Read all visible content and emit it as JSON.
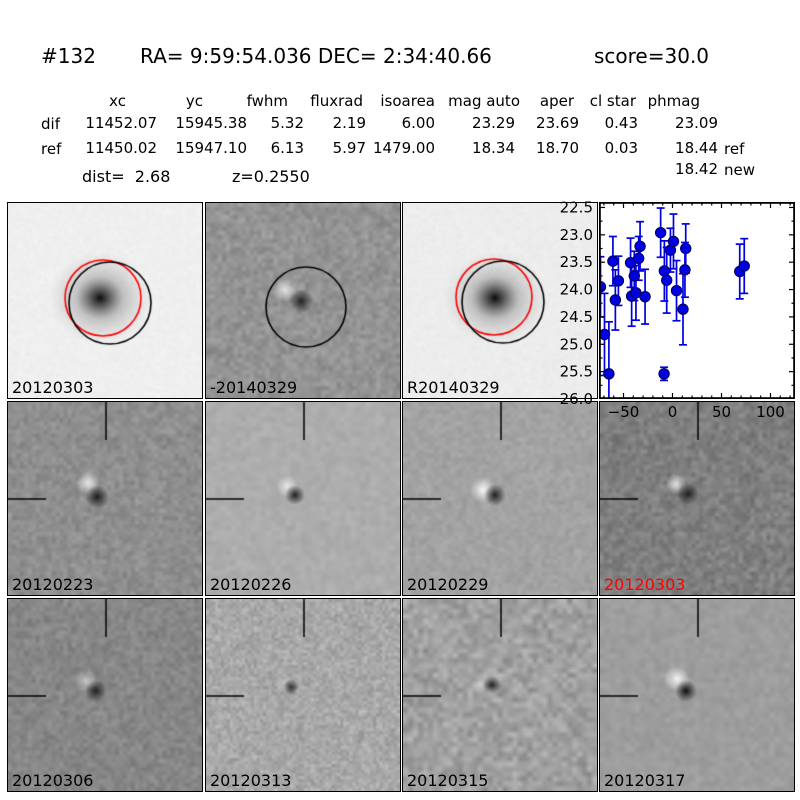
{
  "header": {
    "id": "#132",
    "coords": "RA= 9:59:54.036 DEC= 2:34:40.66",
    "score": "score=30.0"
  },
  "table": {
    "header": [
      "",
      "xc",
      "yc",
      "fwhm",
      "fluxrad",
      "isoarea",
      "mag auto",
      "aper",
      "cl star",
      "phmag",
      ""
    ],
    "rows": [
      [
        "dif",
        "11452.07",
        "15945.38",
        "5.32",
        "2.19",
        "6.00",
        "23.29",
        "23.69",
        "0.43",
        "23.09",
        ""
      ],
      [
        "ref",
        "11450.02",
        "15947.10",
        "6.13",
        "5.97",
        "1479.00",
        "18.34",
        "18.70",
        "0.03",
        "18.44",
        "ref"
      ],
      [
        "",
        "",
        "",
        "",
        "",
        "",
        "",
        "",
        "",
        "18.42",
        "new"
      ]
    ],
    "dist": "dist=  2.68",
    "z": "z=0.2550"
  },
  "panels": [
    {
      "label": "20120303",
      "label_color": "#000000",
      "kind": "new-template",
      "galaxy": true,
      "bg": 0.94,
      "noise": 0.018,
      "cell": 3,
      "red_circle": [
        95,
        95,
        38
      ],
      "black_circle": [
        102,
        100,
        41
      ]
    },
    {
      "label": "-20140329",
      "label_color": "#000000",
      "kind": "difference",
      "bg": 0.58,
      "noise": 0.085,
      "cell": 4,
      "white_blob": [
        79,
        87,
        12,
        0.75
      ],
      "dark_blob": [
        95,
        98,
        12,
        0.8
      ],
      "black_circle": [
        100,
        104,
        40
      ]
    },
    {
      "label": "R20140329",
      "label_color": "#000000",
      "kind": "reference",
      "galaxy": true,
      "bg": 0.93,
      "noise": 0.018,
      "cell": 3,
      "red_circle": [
        91,
        94,
        38
      ],
      "black_circle": [
        100,
        99,
        41
      ]
    },
    {
      "label": "",
      "label_color": "#000000",
      "kind": "chart"
    },
    {
      "label": "20120223",
      "label_color": "#000000",
      "kind": "difference",
      "bg": 0.56,
      "noise": 0.08,
      "cell": 4,
      "white_blob": [
        80,
        81,
        12,
        0.8
      ],
      "dark_blob": [
        89,
        95,
        12,
        0.85
      ],
      "crosshair": true
    },
    {
      "label": "20120226",
      "label_color": "#000000",
      "kind": "difference",
      "bg": 0.68,
      "noise": 0.04,
      "cell": 5,
      "white_blob": [
        81,
        84,
        11,
        0.7
      ],
      "dark_blob": [
        89,
        93,
        10,
        0.85
      ],
      "crosshair": true
    },
    {
      "label": "20120229",
      "label_color": "#000000",
      "kind": "difference",
      "bg": 0.64,
      "noise": 0.05,
      "cell": 4,
      "white_blob": [
        80,
        88,
        13,
        0.9
      ],
      "dark_blob": [
        92,
        93,
        11,
        0.85
      ],
      "crosshair": true
    },
    {
      "label": "20120303",
      "label_color": "#ff0000",
      "kind": "difference",
      "bg": 0.5,
      "noise": 0.095,
      "cell": 4,
      "white_blob": [
        76,
        82,
        11,
        0.7
      ],
      "dark_blob": [
        88,
        92,
        11,
        0.8
      ],
      "crosshair": true
    },
    {
      "label": "20120306",
      "label_color": "#000000",
      "kind": "difference",
      "bg": 0.53,
      "noise": 0.075,
      "cell": 4,
      "white_blob": [
        78,
        82,
        11,
        0.55
      ],
      "dark_blob": [
        88,
        92,
        11,
        0.8
      ],
      "crosshair": true
    },
    {
      "label": "20120313",
      "label_color": "#000000",
      "kind": "difference",
      "bg": 0.66,
      "noise": 0.1,
      "cell": 3,
      "white_blob": [
        78,
        84,
        9,
        0.25
      ],
      "dark_blob": [
        85,
        88,
        8,
        0.75
      ],
      "crosshair": true
    },
    {
      "label": "20120315",
      "label_color": "#000000",
      "kind": "difference",
      "bg": 0.63,
      "noise": 0.12,
      "cell": 5,
      "white_blob": [
        78,
        85,
        10,
        0.4
      ],
      "dark_blob": [
        89,
        86,
        9,
        0.8
      ],
      "crosshair": true
    },
    {
      "label": "20120317",
      "label_color": "#000000",
      "kind": "difference",
      "bg": 0.62,
      "noise": 0.045,
      "cell": 5,
      "white_blob": [
        77,
        80,
        13,
        0.9
      ],
      "dark_blob": [
        86,
        92,
        11,
        0.95
      ],
      "crosshair": true
    }
  ],
  "chart_data": {
    "type": "scatter",
    "title": "",
    "xlabel": "",
    "ylabel": "",
    "xlim": [
      -75,
      125
    ],
    "ylim": [
      22.4,
      26.0
    ],
    "y_inverted": true,
    "grid": false,
    "xticks": [
      -50,
      0,
      50,
      100
    ],
    "yticks": [
      22.5,
      23.0,
      23.5,
      24.0,
      24.5,
      25.0,
      25.5,
      26.0
    ],
    "marker_color": "#0000e0",
    "series": [
      {
        "name": "lightcurve-mag",
        "x": [
          -73.5,
          -69.4,
          -64.9,
          -60.8,
          -58.3,
          -55.2,
          -42.8,
          -41.7,
          -39.0,
          -37.3,
          -34.5,
          -33.1,
          -28.0,
          -12.1,
          -8.6,
          -8.3,
          -5.9,
          -2.1,
          1.0,
          4.1,
          10.7,
          12.7,
          13.5,
          68.6,
          73.2
        ],
        "y": [
          23.95,
          24.82,
          25.54,
          23.48,
          24.19,
          23.84,
          23.51,
          24.12,
          23.75,
          24.06,
          23.43,
          23.21,
          24.13,
          22.96,
          25.54,
          23.66,
          23.83,
          23.28,
          23.12,
          24.02,
          24.36,
          23.64,
          23.25,
          23.67,
          23.57
        ],
        "yerr": [
          0.55,
          0.75,
          0.95,
          0.45,
          0.55,
          0.45,
          0.45,
          0.55,
          0.45,
          0.5,
          0.4,
          0.45,
          0.5,
          0.45,
          0.12,
          0.55,
          0.6,
          0.4,
          0.5,
          0.55,
          0.65,
          0.5,
          0.45,
          0.5,
          0.5
        ]
      }
    ]
  }
}
